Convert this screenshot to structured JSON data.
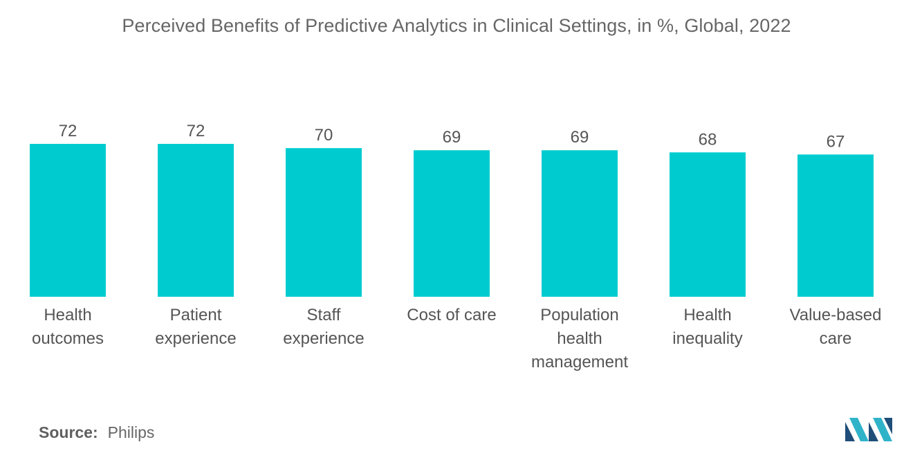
{
  "chart_data": {
    "type": "bar",
    "title": "Perceived Benefits of Predictive Analytics in Clinical Settings, in %, Global, 2022",
    "categories": [
      [
        "Health",
        "outcomes"
      ],
      [
        "Patient",
        "experience"
      ],
      [
        "Staff",
        "experience"
      ],
      [
        "Cost of care"
      ],
      [
        "Population",
        "health",
        "management"
      ],
      [
        "Health",
        "inequality"
      ],
      [
        "Value-based",
        "care"
      ]
    ],
    "values": [
      72,
      72,
      70,
      69,
      69,
      68,
      67
    ],
    "data_labels": [
      "72",
      "72",
      "70",
      "69",
      "69",
      "68",
      "67"
    ],
    "ylim": [
      0,
      72
    ],
    "xlabel": "",
    "ylabel": "",
    "grid": false,
    "legend": "none",
    "bar_color": "#00cccf"
  },
  "source": {
    "label": "Source:",
    "value": "Philips"
  },
  "colors": {
    "title": "#666666",
    "text": "#555555",
    "logo_dark": "#1f4e79",
    "logo_light": "#2fb3c9"
  }
}
